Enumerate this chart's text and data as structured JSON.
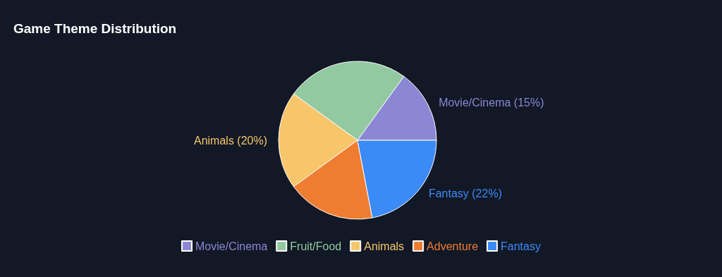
{
  "chart_data": {
    "type": "pie",
    "title": "Game Theme Distribution",
    "categories": [
      "Movie/Cinema",
      "Fruit/Food",
      "Animals",
      "Adventure",
      "Fantasy"
    ],
    "values": [
      15,
      25,
      20,
      18,
      22
    ],
    "colors": [
      "#8b87d4",
      "#93c9a0",
      "#f7c66a",
      "#ef7d31",
      "#3b8af6"
    ],
    "value_labels": [
      "Movie/Cinema (15%)",
      null,
      "Animals (20%)",
      null,
      "Fantasy (22%)"
    ],
    "legend": "bottom"
  }
}
